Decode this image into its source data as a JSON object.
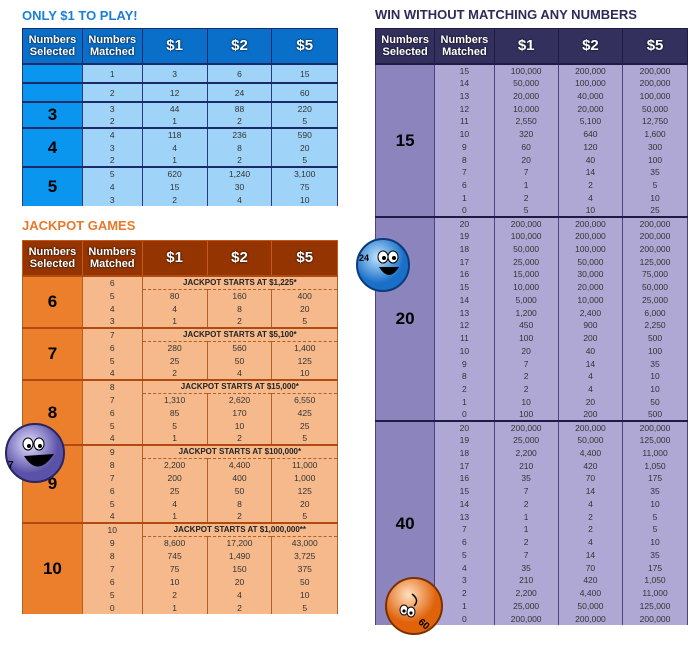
{
  "headers": {
    "selected": "Numbers Selected",
    "matched": "Numbers Matched",
    "prizes": [
      "$1",
      "$2",
      "$5"
    ]
  },
  "colors": {
    "blue": "#0a6fc8",
    "orange": "#ec7f2c",
    "purple": "#33305e"
  },
  "sections": [
    {
      "title": "ONLY $1 TO PLAY!",
      "groups": [
        {
          "selected": "",
          "rows": [
            [
              "1",
              "3",
              "6",
              "15"
            ]
          ]
        },
        {
          "selected": "",
          "rows": [
            [
              "2",
              "12",
              "24",
              "60"
            ]
          ]
        },
        {
          "selected": "3",
          "rows": [
            [
              "3",
              "44",
              "88",
              "220"
            ],
            [
              "2",
              "1",
              "2",
              "5"
            ]
          ]
        },
        {
          "selected": "4",
          "rows": [
            [
              "4",
              "118",
              "236",
              "590"
            ],
            [
              "3",
              "4",
              "8",
              "20"
            ],
            [
              "2",
              "1",
              "2",
              "5"
            ]
          ]
        },
        {
          "selected": "5",
          "rows": [
            [
              "5",
              "620",
              "1,240",
              "3,100"
            ],
            [
              "4",
              "15",
              "30",
              "75"
            ],
            [
              "3",
              "2",
              "4",
              "10"
            ]
          ]
        }
      ]
    },
    {
      "title": "JACKPOT GAMES",
      "groups": [
        {
          "selected": "6",
          "rows": [
            [
              "6",
              "JACKPOT STARTS AT $1,225*"
            ],
            [
              "5",
              "80",
              "160",
              "400"
            ],
            [
              "4",
              "4",
              "8",
              "20"
            ],
            [
              "3",
              "1",
              "2",
              "5"
            ]
          ]
        },
        {
          "selected": "7",
          "rows": [
            [
              "7",
              "JACKPOT STARTS AT $5,100*"
            ],
            [
              "6",
              "280",
              "560",
              "1,400"
            ],
            [
              "5",
              "25",
              "50",
              "125"
            ],
            [
              "4",
              "2",
              "4",
              "10"
            ]
          ]
        },
        {
          "selected": "8",
          "rows": [
            [
              "8",
              "JACKPOT STARTS AT $15,000*"
            ],
            [
              "7",
              "1,310",
              "2,620",
              "6,550"
            ],
            [
              "6",
              "85",
              "170",
              "425"
            ],
            [
              "5",
              "5",
              "10",
              "25"
            ],
            [
              "4",
              "1",
              "2",
              "5"
            ]
          ]
        },
        {
          "selected": "9",
          "rows": [
            [
              "9",
              "JACKPOT STARTS AT $100,000*"
            ],
            [
              "8",
              "2,200",
              "4,400",
              "11,000"
            ],
            [
              "7",
              "200",
              "400",
              "1,000"
            ],
            [
              "6",
              "25",
              "50",
              "125"
            ],
            [
              "5",
              "4",
              "8",
              "20"
            ],
            [
              "4",
              "1",
              "2",
              "5"
            ]
          ]
        },
        {
          "selected": "10",
          "rows": [
            [
              "10",
              "JACKPOT STARTS AT $1,000,000**"
            ],
            [
              "9",
              "8,600",
              "17,200",
              "43,000"
            ],
            [
              "8",
              "745",
              "1,490",
              "3,725"
            ],
            [
              "7",
              "75",
              "150",
              "375"
            ],
            [
              "6",
              "10",
              "20",
              "50"
            ],
            [
              "5",
              "2",
              "4",
              "10"
            ],
            [
              "0",
              "1",
              "2",
              "5"
            ]
          ]
        }
      ]
    },
    {
      "title": "WIN WITHOUT MATCHING ANY NUMBERS",
      "groups": [
        {
          "selected": "15",
          "rows": [
            [
              "15",
              "100,000",
              "200,000",
              "200,000"
            ],
            [
              "14",
              "50,000",
              "100,000",
              "200,000"
            ],
            [
              "13",
              "20,000",
              "40,000",
              "100,000"
            ],
            [
              "12",
              "10,000",
              "20,000",
              "50,000"
            ],
            [
              "11",
              "2,550",
              "5,100",
              "12,750"
            ],
            [
              "10",
              "320",
              "640",
              "1,600"
            ],
            [
              "9",
              "60",
              "120",
              "300"
            ],
            [
              "8",
              "20",
              "40",
              "100"
            ],
            [
              "7",
              "7",
              "14",
              "35"
            ],
            [
              "6",
              "1",
              "2",
              "5"
            ],
            [
              "1",
              "2",
              "4",
              "10"
            ],
            [
              "0",
              "5",
              "10",
              "25"
            ]
          ]
        },
        {
          "selected": "20",
          "rows": [
            [
              "20",
              "200,000",
              "200,000",
              "200,000"
            ],
            [
              "19",
              "100,000",
              "200,000",
              "200,000"
            ],
            [
              "18",
              "50,000",
              "100,000",
              "200,000"
            ],
            [
              "17",
              "25,000",
              "50,000",
              "125,000"
            ],
            [
              "16",
              "15,000",
              "30,000",
              "75,000"
            ],
            [
              "15",
              "10,000",
              "20,000",
              "50,000"
            ],
            [
              "14",
              "5,000",
              "10,000",
              "25,000"
            ],
            [
              "13",
              "1,200",
              "2,400",
              "6,000"
            ],
            [
              "12",
              "450",
              "900",
              "2,250"
            ],
            [
              "11",
              "100",
              "200",
              "500"
            ],
            [
              "10",
              "20",
              "40",
              "100"
            ],
            [
              "9",
              "7",
              "14",
              "35"
            ],
            [
              "8",
              "2",
              "4",
              "10"
            ],
            [
              "2",
              "2",
              "4",
              "10"
            ],
            [
              "1",
              "10",
              "20",
              "50"
            ],
            [
              "0",
              "100",
              "200",
              "500"
            ]
          ]
        },
        {
          "selected": "40",
          "rows": [
            [
              "20",
              "200,000",
              "200,000",
              "200,000"
            ],
            [
              "19",
              "25,000",
              "50,000",
              "125,000"
            ],
            [
              "18",
              "2,200",
              "4,400",
              "11,000"
            ],
            [
              "17",
              "210",
              "420",
              "1,050"
            ],
            [
              "16",
              "35",
              "70",
              "175"
            ],
            [
              "15",
              "7",
              "14",
              "35"
            ],
            [
              "14",
              "2",
              "4",
              "10"
            ],
            [
              "13",
              "1",
              "2",
              "5"
            ],
            [
              "7",
              "1",
              "2",
              "5"
            ],
            [
              "6",
              "2",
              "4",
              "10"
            ],
            [
              "5",
              "7",
              "14",
              "35"
            ],
            [
              "4",
              "35",
              "70",
              "175"
            ],
            [
              "3",
              "210",
              "420",
              "1,050"
            ],
            [
              "2",
              "2,200",
              "4,400",
              "11,000"
            ],
            [
              "1",
              "25,000",
              "50,000",
              "125,000"
            ],
            [
              "0",
              "200,000",
              "200,000",
              "200,000"
            ]
          ]
        }
      ]
    }
  ],
  "decorations": {
    "ball_blue_number": "24",
    "ball_purple_number": "7",
    "ball_orange_number": "60"
  }
}
